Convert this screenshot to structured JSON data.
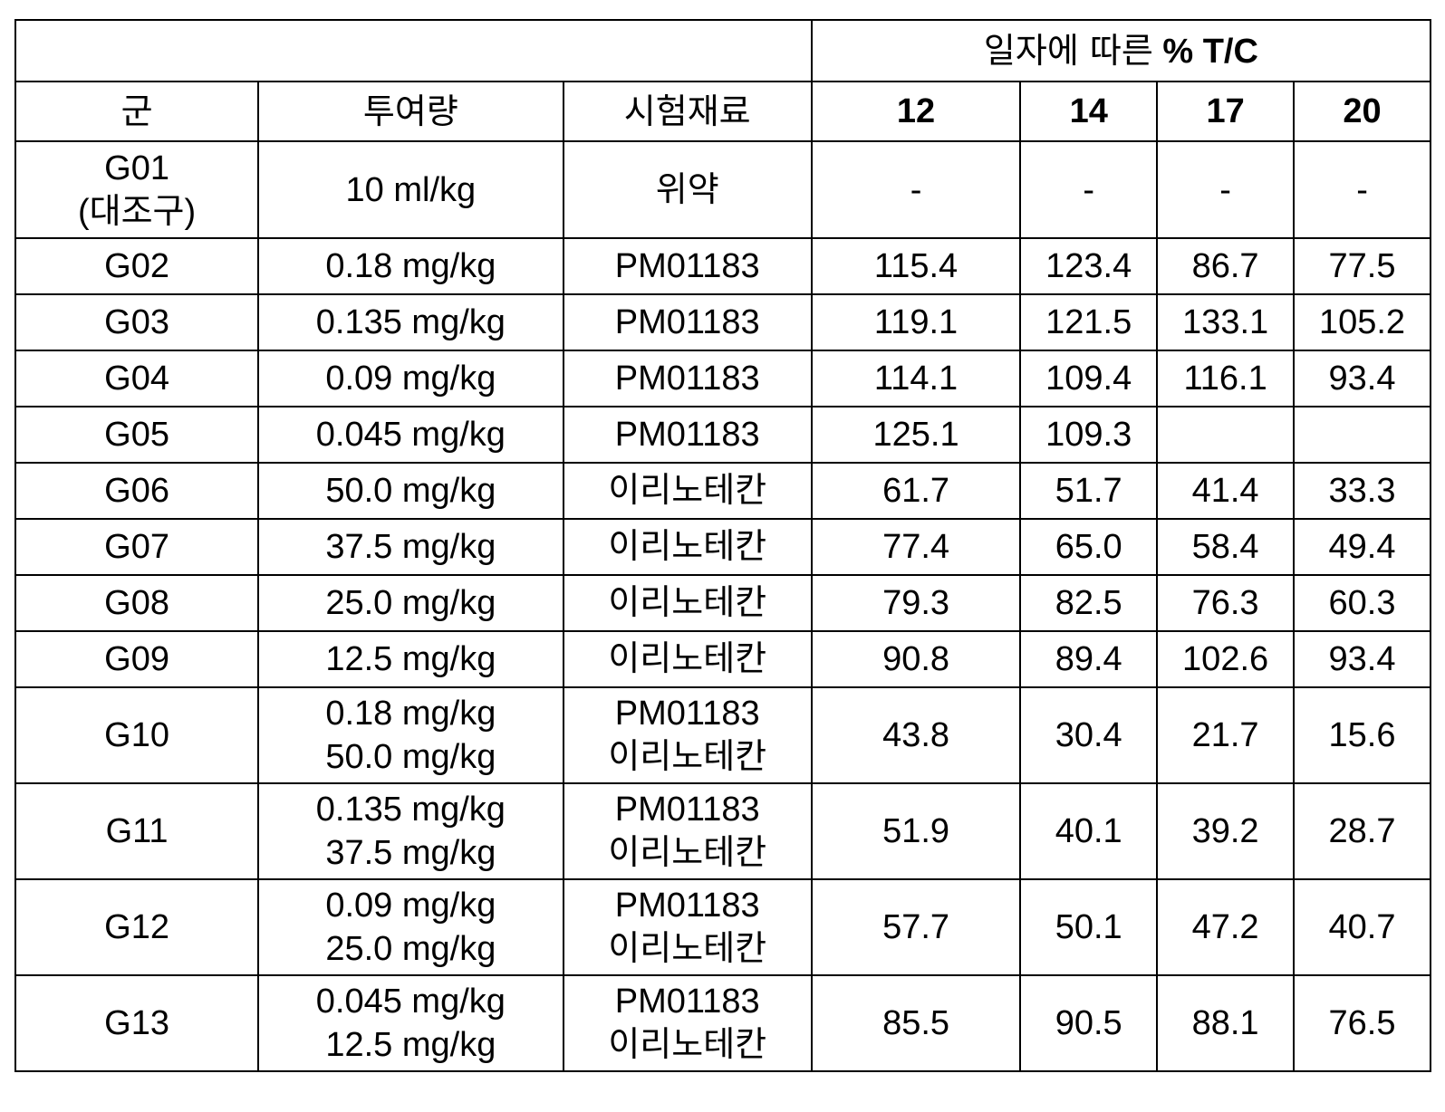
{
  "table": {
    "top_header": {
      "left": "",
      "right_prefix": "일자에 따른",
      "right_suffix": "% T/C"
    },
    "columns": [
      "군",
      "투여량",
      "시험재료",
      "12",
      "14",
      "17",
      "20"
    ],
    "rows": [
      {
        "group": [
          "G01",
          "(대조구)"
        ],
        "dose": [
          "10 ml/kg"
        ],
        "material": [
          "위약"
        ],
        "d12": "-",
        "d14": "-",
        "d17": "-",
        "d20": "-"
      },
      {
        "group": [
          "G02"
        ],
        "dose": [
          "0.18 mg/kg"
        ],
        "material": [
          "PM01183"
        ],
        "d12": "115.4",
        "d14": "123.4",
        "d17": "86.7",
        "d20": "77.5"
      },
      {
        "group": [
          "G03"
        ],
        "dose": [
          "0.135 mg/kg"
        ],
        "material": [
          "PM01183"
        ],
        "d12": "119.1",
        "d14": "121.5",
        "d17": "133.1",
        "d20": "105.2"
      },
      {
        "group": [
          "G04"
        ],
        "dose": [
          "0.09 mg/kg"
        ],
        "material": [
          "PM01183"
        ],
        "d12": "114.1",
        "d14": "109.4",
        "d17": "116.1",
        "d20": "93.4"
      },
      {
        "group": [
          "G05"
        ],
        "dose": [
          "0.045 mg/kg"
        ],
        "material": [
          "PM01183"
        ],
        "d12": "125.1",
        "d14": "109.3",
        "d17": "",
        "d20": ""
      },
      {
        "group": [
          "G06"
        ],
        "dose": [
          "50.0 mg/kg"
        ],
        "material": [
          "이리노테칸"
        ],
        "d12": "61.7",
        "d14": "51.7",
        "d17": "41.4",
        "d20": "33.3"
      },
      {
        "group": [
          "G07"
        ],
        "dose": [
          "37.5 mg/kg"
        ],
        "material": [
          "이리노테칸"
        ],
        "d12": "77.4",
        "d14": "65.0",
        "d17": "58.4",
        "d20": "49.4"
      },
      {
        "group": [
          "G08"
        ],
        "dose": [
          "25.0 mg/kg"
        ],
        "material": [
          "이리노테칸"
        ],
        "d12": "79.3",
        "d14": "82.5",
        "d17": "76.3",
        "d20": "60.3"
      },
      {
        "group": [
          "G09"
        ],
        "dose": [
          "12.5 mg/kg"
        ],
        "material": [
          "이리노테칸"
        ],
        "d12": "90.8",
        "d14": "89.4",
        "d17": "102.6",
        "d20": "93.4"
      },
      {
        "group": [
          "G10"
        ],
        "dose": [
          "0.18 mg/kg",
          "50.0 mg/kg"
        ],
        "material": [
          "PM01183",
          "이리노테칸"
        ],
        "d12": "43.8",
        "d14": "30.4",
        "d17": "21.7",
        "d20": "15.6"
      },
      {
        "group": [
          "G11"
        ],
        "dose": [
          "0.135 mg/kg",
          "37.5 mg/kg"
        ],
        "material": [
          "PM01183",
          "이리노테칸"
        ],
        "d12": "51.9",
        "d14": "40.1",
        "d17": "39.2",
        "d20": "28.7"
      },
      {
        "group": [
          "G12"
        ],
        "dose": [
          "0.09 mg/kg",
          "25.0 mg/kg"
        ],
        "material": [
          "PM01183",
          "이리노테칸"
        ],
        "d12": "57.7",
        "d14": "50.1",
        "d17": "47.2",
        "d20": "40.7"
      },
      {
        "group": [
          "G13"
        ],
        "dose": [
          "0.045 mg/kg",
          "12.5 mg/kg"
        ],
        "material": [
          "PM01183",
          "이리노테칸"
        ],
        "d12": "85.5",
        "d14": "90.5",
        "d17": "88.1",
        "d20": "76.5"
      }
    ]
  }
}
